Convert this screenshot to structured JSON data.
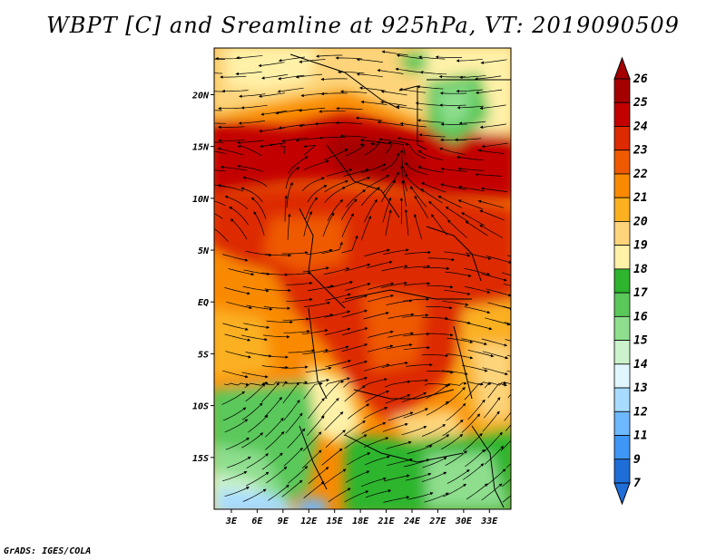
{
  "title": "WBPT [C] and Sreamline at 925hPa, VT: 2019090509",
  "credit": "GrADS: IGES/COLA",
  "map": {
    "lat_labels": [
      "20N",
      "15N",
      "10N",
      "5N",
      "EQ",
      "5S",
      "10S",
      "15S"
    ],
    "lat_values": [
      20,
      15,
      10,
      5,
      0,
      -5,
      -10,
      -15
    ],
    "lon_labels": [
      "3E",
      "6E",
      "9E",
      "12E",
      "15E",
      "18E",
      "21E",
      "24E",
      "27E",
      "30E",
      "33E"
    ],
    "lon_values": [
      3,
      6,
      9,
      12,
      15,
      18,
      21,
      24,
      27,
      30,
      33
    ],
    "lon_range": [
      1,
      35.5
    ],
    "lat_range": [
      -20,
      24.5
    ]
  },
  "colorbar": {
    "labels": [
      "26",
      "25",
      "24",
      "23",
      "22",
      "21",
      "20",
      "19",
      "18",
      "17",
      "16",
      "15",
      "14",
      "13",
      "12",
      "11",
      "9",
      "7"
    ],
    "colors": [
      "#a50000",
      "#c30000",
      "#dd2a00",
      "#ef5a00",
      "#f98a00",
      "#fbb020",
      "#fdd47a",
      "#fff1a8",
      "#2eb52e",
      "#5ac85a",
      "#8ede8e",
      "#cbf2cb",
      "#dff6ff",
      "#a8dcff",
      "#6eb8ff",
      "#3e96f5",
      "#1f6ed8"
    ],
    "bottom_arrow_color": "#1f6ed8",
    "top_arrow_color": "#a50000"
  }
}
